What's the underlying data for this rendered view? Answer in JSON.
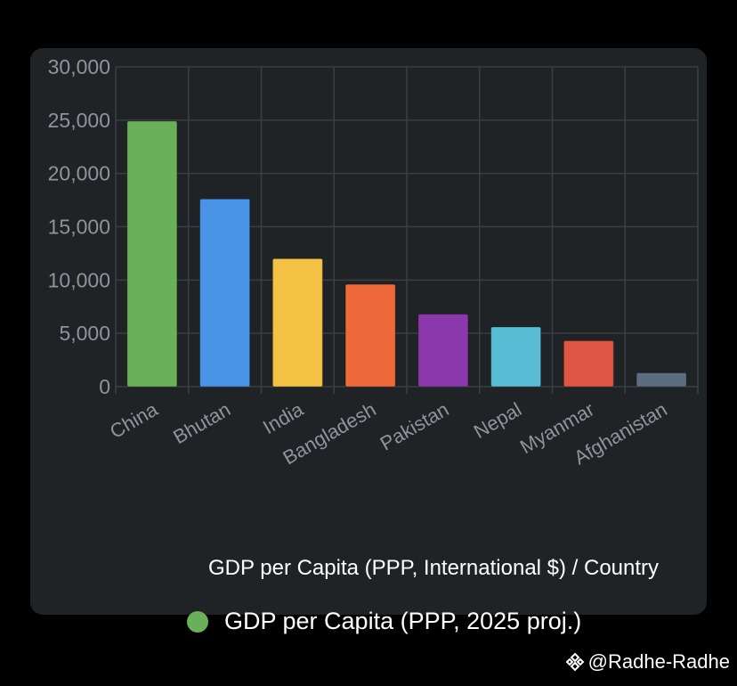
{
  "chart_data": {
    "type": "bar",
    "categories": [
      "China",
      "Bhutan",
      "India",
      "Bangladesh",
      "Pakistan",
      "Nepal",
      "Myanmar",
      "Afghanistan"
    ],
    "series": [
      {
        "name": "GDP per Capita (PPP, 2025 proj.)",
        "values": [
          24900,
          17600,
          12000,
          9600,
          6800,
          5600,
          4300,
          1300
        ]
      }
    ],
    "colors": [
      "#6ab05a",
      "#4a94e8",
      "#f3c244",
      "#ee6a3a",
      "#8b38ad",
      "#58bcd4",
      "#e05645",
      "#5c6d80"
    ],
    "xlabel": "GDP per Capita (PPP, International $) / Country",
    "ylabel": "",
    "ylim": [
      0,
      30000
    ],
    "yticks": [
      "0",
      "5,000",
      "10,000",
      "15,000",
      "20,000",
      "25,000",
      "30,000"
    ],
    "grid": true,
    "legend": "bottom"
  },
  "watermark": {
    "icon": "binance-diamond-icon",
    "text": "@Radhe-Radhe"
  }
}
